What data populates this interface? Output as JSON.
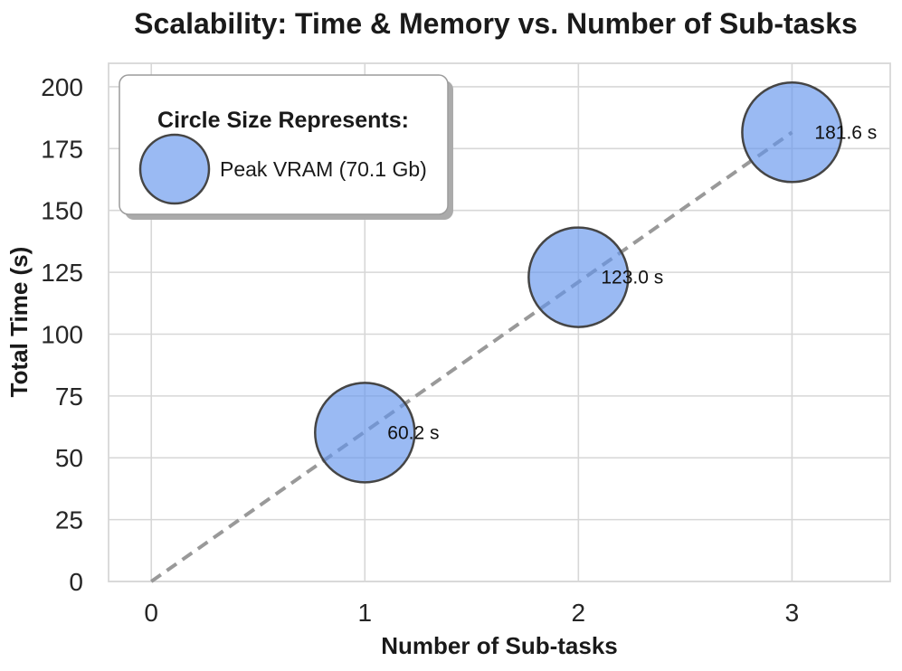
{
  "chart_data": {
    "type": "scatter",
    "title": "Scalability: Time & Memory vs. Number of Sub-tasks",
    "xlabel": "Number of Sub-tasks",
    "ylabel": "Total Time (s)",
    "x": [
      1,
      2,
      3
    ],
    "y": [
      60.2,
      123.0,
      181.6
    ],
    "point_labels": [
      "60.2 s",
      "123.0 s",
      "181.6 s"
    ],
    "trend_line": {
      "x": [
        0,
        3
      ],
      "y": [
        0,
        181.6
      ],
      "style": "dashed"
    },
    "xticks": [
      0,
      1,
      2,
      3
    ],
    "yticks": [
      0,
      25,
      50,
      75,
      100,
      125,
      150,
      175,
      200
    ],
    "xlim": [
      -0.2,
      3.46
    ],
    "ylim": [
      0,
      209.5
    ],
    "grid": true,
    "legend": {
      "title": "Circle Size Represents:",
      "label": "Peak VRAM (70.1 Gb)",
      "position": "upper left"
    },
    "bubble": {
      "radius_px": 55,
      "fill": "#6495ed",
      "fill_opacity": 0.65,
      "stroke": "#454545"
    },
    "colors": {
      "grid": "#d7d7d7",
      "trend": "#999999",
      "text": "#1a1a1a"
    }
  }
}
